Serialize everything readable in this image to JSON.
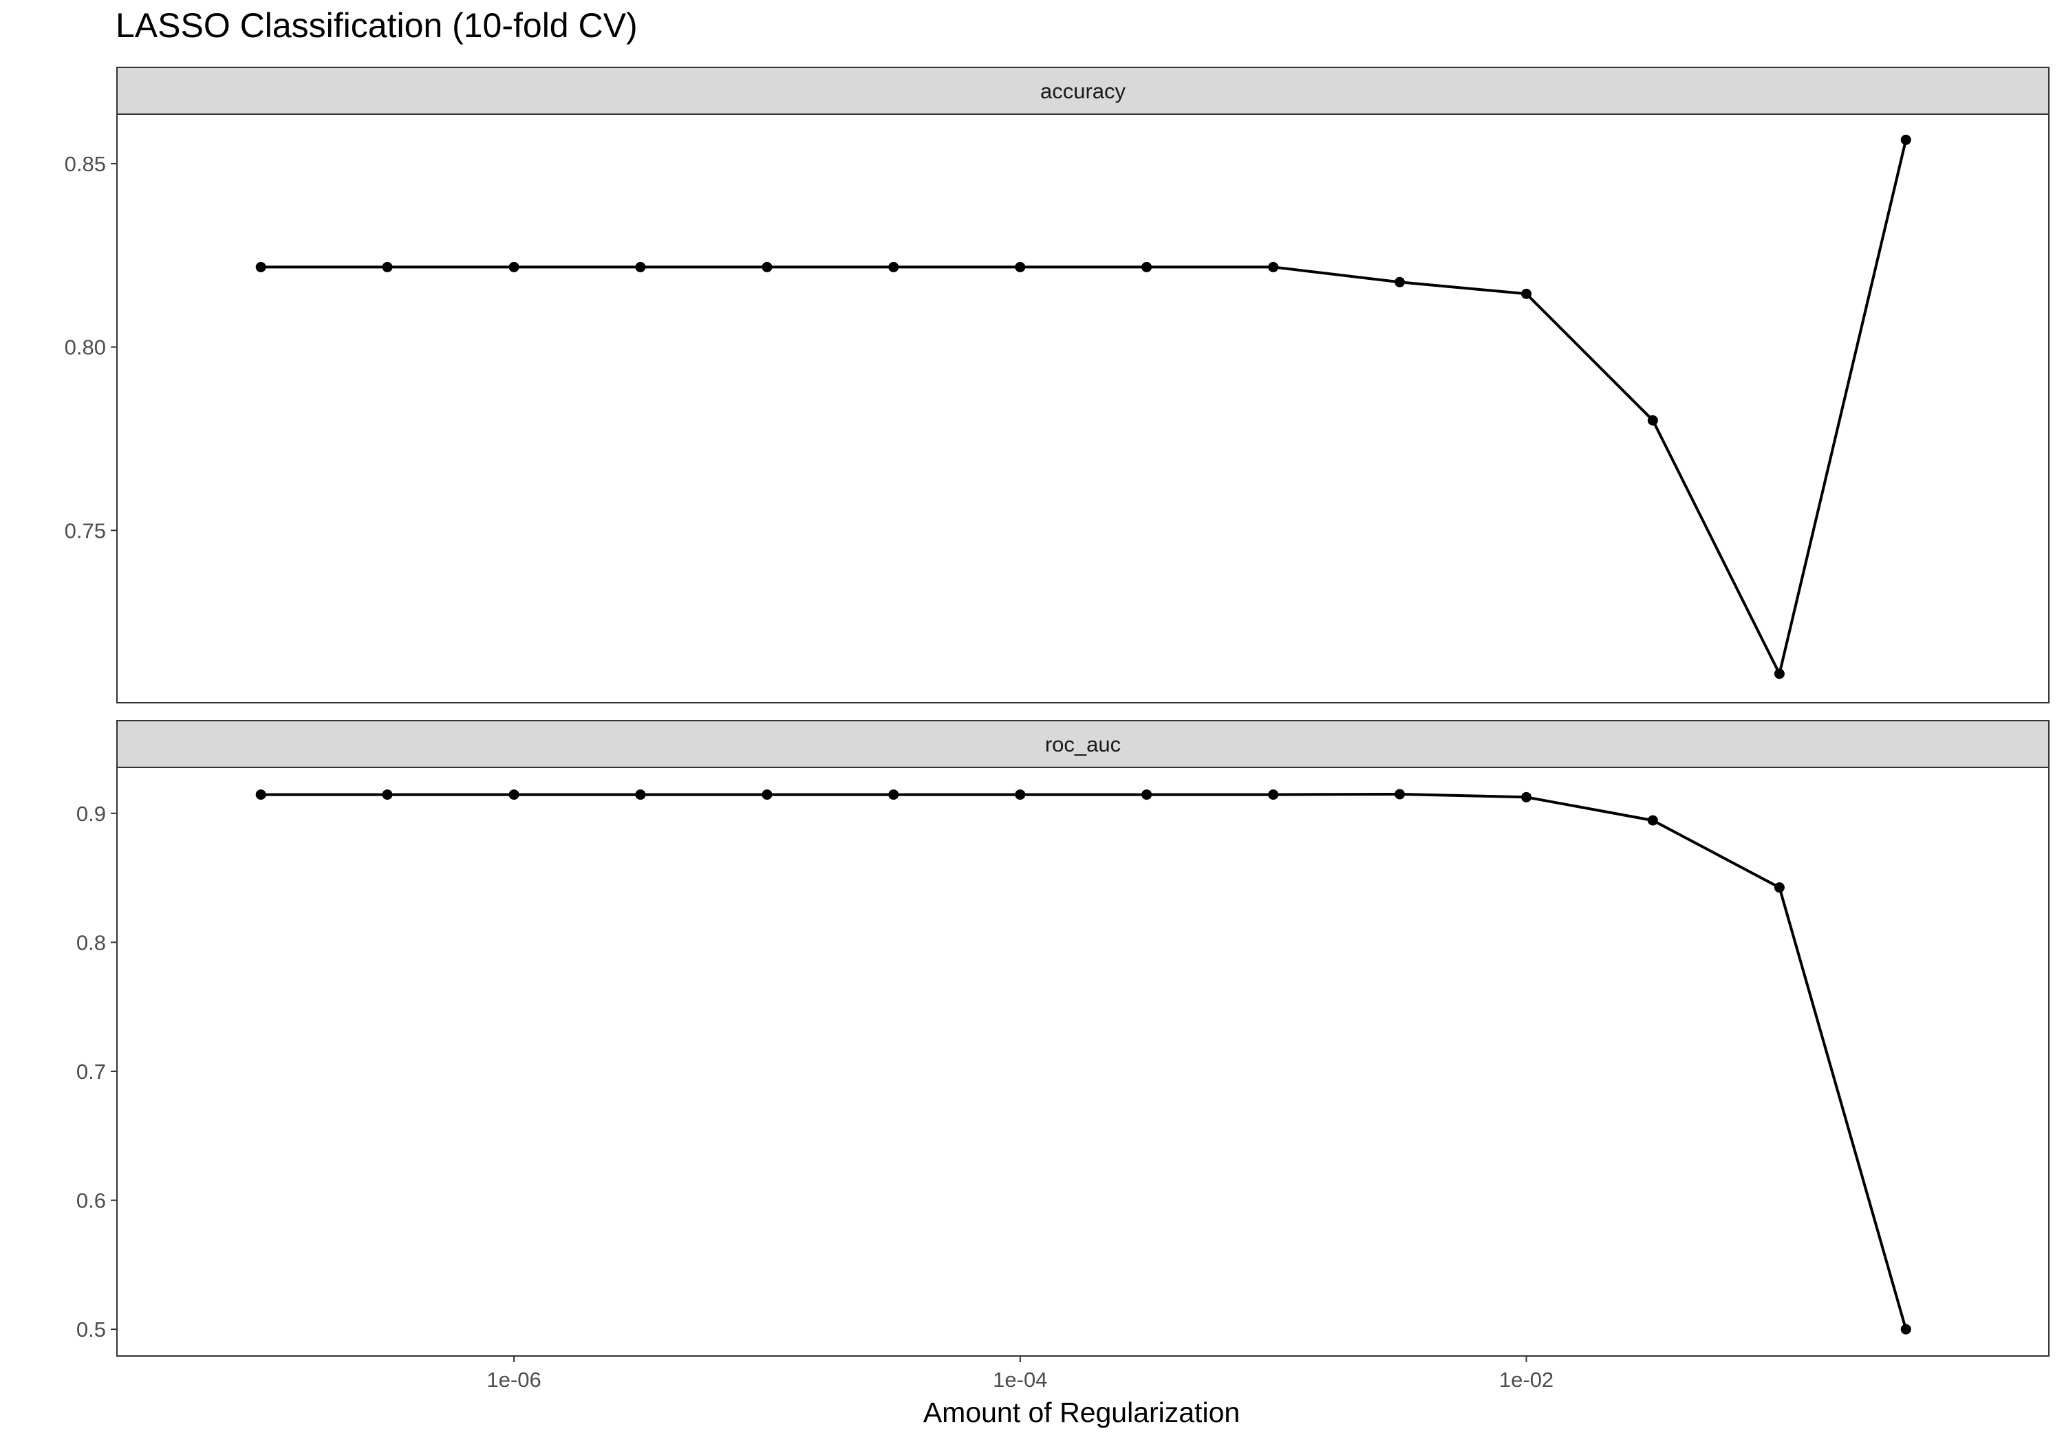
{
  "chart_data": {
    "type": "line",
    "title": "LASSO Classification (10-fold CV)",
    "xlabel": "Amount of Regularization",
    "x_scale": "log10",
    "x": [
      1e-07,
      3.16e-07,
      1e-06,
      3.16e-06,
      1e-05,
      3.16e-05,
      0.0001,
      0.000316,
      0.001,
      0.00316,
      0.01,
      0.0316,
      0.1,
      0.316
    ],
    "xlim": [
      2.7e-08,
      1.16
    ],
    "x_ticks": [
      {
        "value": 1e-06,
        "label": "1e-06"
      },
      {
        "value": 0.0001,
        "label": "1e-04"
      },
      {
        "value": 0.01,
        "label": "1e-02"
      }
    ],
    "grid": false,
    "facets": [
      {
        "label": "accuracy",
        "values": [
          0.8218,
          0.8218,
          0.8218,
          0.8218,
          0.8218,
          0.8218,
          0.8218,
          0.8218,
          0.8218,
          0.8177,
          0.8145,
          0.78,
          0.7109,
          0.8565
        ],
        "ylim": [
          0.703,
          0.8635
        ],
        "y_ticks": [
          {
            "value": 0.75,
            "label": "0.75"
          },
          {
            "value": 0.8,
            "label": "0.80"
          },
          {
            "value": 0.85,
            "label": "0.85"
          }
        ]
      },
      {
        "label": "roc_auc",
        "values": [
          0.9145,
          0.9145,
          0.9145,
          0.9145,
          0.9145,
          0.9145,
          0.9145,
          0.9145,
          0.9145,
          0.9148,
          0.9125,
          0.8945,
          0.8425,
          0.5
        ],
        "ylim": [
          0.4793,
          0.9356
        ],
        "y_ticks": [
          {
            "value": 0.5,
            "label": "0.5"
          },
          {
            "value": 0.6,
            "label": "0.6"
          },
          {
            "value": 0.7,
            "label": "0.7"
          },
          {
            "value": 0.8,
            "label": "0.8"
          },
          {
            "value": 0.9,
            "label": "0.9"
          }
        ]
      }
    ]
  }
}
